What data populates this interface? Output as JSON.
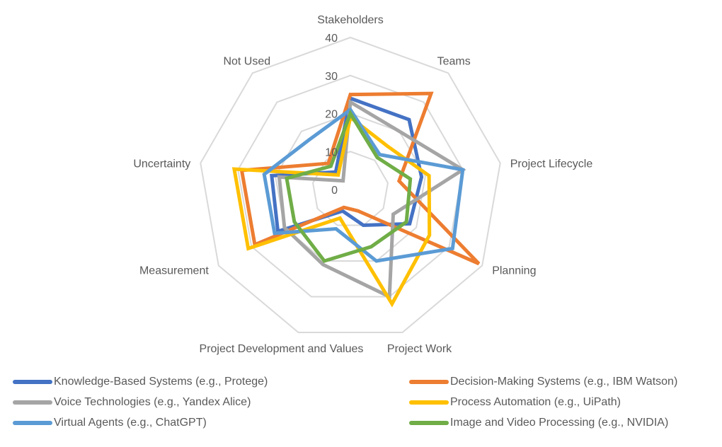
{
  "chart_data": {
    "type": "radar",
    "title": "",
    "axes": [
      "Stakeholders",
      "Teams",
      "Project Lifecycle",
      "Planning",
      "Project Work",
      "Project Development and Values",
      "Measurement",
      "Uncertainty",
      "Not Used"
    ],
    "radial_ticks": [
      0,
      10,
      20,
      30,
      40
    ],
    "rlim": [
      0,
      40
    ],
    "grid": true,
    "legend_position": "bottom",
    "series": [
      {
        "name": "Knowledge-Based Systems (e.g., Protege)",
        "color": "#4472C4",
        "values": [
          24,
          24,
          19,
          18,
          10,
          6,
          22,
          21,
          6
        ]
      },
      {
        "name": "Decision-Making Systems (e.g., IBM Watson)",
        "color": "#ED7D31",
        "values": [
          25,
          33,
          13,
          39,
          6,
          5,
          29,
          29,
          9
        ]
      },
      {
        "name": "Voice Technologies (e.g., Yandex Alice)",
        "color": "#A5A5A5",
        "values": [
          23,
          20,
          30,
          13,
          30,
          21,
          20,
          19,
          3
        ]
      },
      {
        "name": "Process Automation (e.g., UiPath)",
        "color": "#FFC000",
        "values": [
          19,
          15,
          21,
          24,
          32,
          8,
          31,
          31,
          5
        ]
      },
      {
        "name": "Virtual Agents (e.g., ChatGPT)",
        "color": "#5B9BD5",
        "values": [
          21,
          12,
          30,
          31,
          20,
          11,
          23,
          23,
          17
        ]
      },
      {
        "name": "Image and Video Processing (e.g., NVIDIA)",
        "color": "#70AD47",
        "values": [
          20,
          11,
          16,
          17,
          16,
          20,
          17,
          17,
          8
        ]
      }
    ]
  },
  "legend": {
    "items": [
      {
        "label": "Knowledge-Based Systems (e.g., Protege)",
        "color": "#4472C4"
      },
      {
        "label": "Decision-Making Systems (e.g., IBM Watson)",
        "color": "#ED7D31"
      },
      {
        "label": "Voice Technologies (e.g., Yandex Alice)",
        "color": "#A5A5A5"
      },
      {
        "label": "Process Automation (e.g., UiPath)",
        "color": "#FFC000"
      },
      {
        "label": "Virtual Agents (e.g., ChatGPT)",
        "color": "#5B9BD5"
      },
      {
        "label": "Image and Video Processing (e.g., NVIDIA)",
        "color": "#70AD47"
      }
    ]
  }
}
